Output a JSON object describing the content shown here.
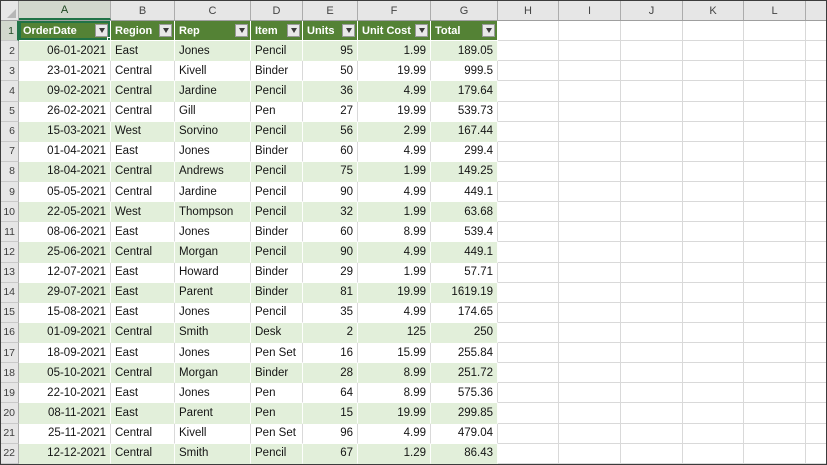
{
  "sheet": {
    "column_letters": [
      "A",
      "B",
      "C",
      "D",
      "E",
      "F",
      "G",
      "H",
      "I",
      "J",
      "K",
      "L"
    ],
    "selection": {
      "active_cell": "A1",
      "selected_column": "A",
      "selected_row": "1"
    },
    "colors": {
      "table_header_bg": "#548235",
      "table_header_text": "#FFFFFF",
      "band_row_bg": "#E2EFDA",
      "white_row_bg": "#FFFFFF",
      "grid_line": "#D9D9D9",
      "header_strip_bg": "#E6E6E6",
      "selection_border": "#217346"
    },
    "icons": {
      "filter_dropdown": "down-triangle",
      "select_all_corner": "corner-triangle"
    }
  },
  "table": {
    "header_row_number": "1",
    "columns": [
      {
        "letter": "A",
        "label": "OrderDate"
      },
      {
        "letter": "B",
        "label": "Region"
      },
      {
        "letter": "C",
        "label": "Rep"
      },
      {
        "letter": "D",
        "label": "Item"
      },
      {
        "letter": "E",
        "label": "Units"
      },
      {
        "letter": "F",
        "label": "Unit Cost"
      },
      {
        "letter": "G",
        "label": "Total"
      }
    ],
    "rows": [
      {
        "n": "2",
        "cells": [
          "06-01-2021",
          "East",
          "Jones",
          "Pencil",
          "95",
          "1.99",
          "189.05"
        ]
      },
      {
        "n": "3",
        "cells": [
          "23-01-2021",
          "Central",
          "Kivell",
          "Binder",
          "50",
          "19.99",
          "999.5"
        ]
      },
      {
        "n": "4",
        "cells": [
          "09-02-2021",
          "Central",
          "Jardine",
          "Pencil",
          "36",
          "4.99",
          "179.64"
        ]
      },
      {
        "n": "5",
        "cells": [
          "26-02-2021",
          "Central",
          "Gill",
          "Pen",
          "27",
          "19.99",
          "539.73"
        ]
      },
      {
        "n": "6",
        "cells": [
          "15-03-2021",
          "West",
          "Sorvino",
          "Pencil",
          "56",
          "2.99",
          "167.44"
        ]
      },
      {
        "n": "7",
        "cells": [
          "01-04-2021",
          "East",
          "Jones",
          "Binder",
          "60",
          "4.99",
          "299.4"
        ]
      },
      {
        "n": "8",
        "cells": [
          "18-04-2021",
          "Central",
          "Andrews",
          "Pencil",
          "75",
          "1.99",
          "149.25"
        ]
      },
      {
        "n": "9",
        "cells": [
          "05-05-2021",
          "Central",
          "Jardine",
          "Pencil",
          "90",
          "4.99",
          "449.1"
        ]
      },
      {
        "n": "10",
        "cells": [
          "22-05-2021",
          "West",
          "Thompson",
          "Pencil",
          "32",
          "1.99",
          "63.68"
        ]
      },
      {
        "n": "11",
        "cells": [
          "08-06-2021",
          "East",
          "Jones",
          "Binder",
          "60",
          "8.99",
          "539.4"
        ]
      },
      {
        "n": "12",
        "cells": [
          "25-06-2021",
          "Central",
          "Morgan",
          "Pencil",
          "90",
          "4.99",
          "449.1"
        ]
      },
      {
        "n": "13",
        "cells": [
          "12-07-2021",
          "East",
          "Howard",
          "Binder",
          "29",
          "1.99",
          "57.71"
        ]
      },
      {
        "n": "14",
        "cells": [
          "29-07-2021",
          "East",
          "Parent",
          "Binder",
          "81",
          "19.99",
          "1619.19"
        ]
      },
      {
        "n": "15",
        "cells": [
          "15-08-2021",
          "East",
          "Jones",
          "Pencil",
          "35",
          "4.99",
          "174.65"
        ]
      },
      {
        "n": "16",
        "cells": [
          "01-09-2021",
          "Central",
          "Smith",
          "Desk",
          "2",
          "125",
          "250"
        ]
      },
      {
        "n": "17",
        "cells": [
          "18-09-2021",
          "East",
          "Jones",
          "Pen Set",
          "16",
          "15.99",
          "255.84"
        ]
      },
      {
        "n": "18",
        "cells": [
          "05-10-2021",
          "Central",
          "Morgan",
          "Binder",
          "28",
          "8.99",
          "251.72"
        ]
      },
      {
        "n": "19",
        "cells": [
          "22-10-2021",
          "East",
          "Jones",
          "Pen",
          "64",
          "8.99",
          "575.36"
        ]
      },
      {
        "n": "20",
        "cells": [
          "08-11-2021",
          "East",
          "Parent",
          "Pen",
          "15",
          "19.99",
          "299.85"
        ]
      },
      {
        "n": "21",
        "cells": [
          "25-11-2021",
          "Central",
          "Kivell",
          "Pen Set",
          "96",
          "4.99",
          "479.04"
        ]
      },
      {
        "n": "22",
        "cells": [
          "12-12-2021",
          "Central",
          "Smith",
          "Pencil",
          "67",
          "1.29",
          "86.43"
        ]
      }
    ]
  }
}
